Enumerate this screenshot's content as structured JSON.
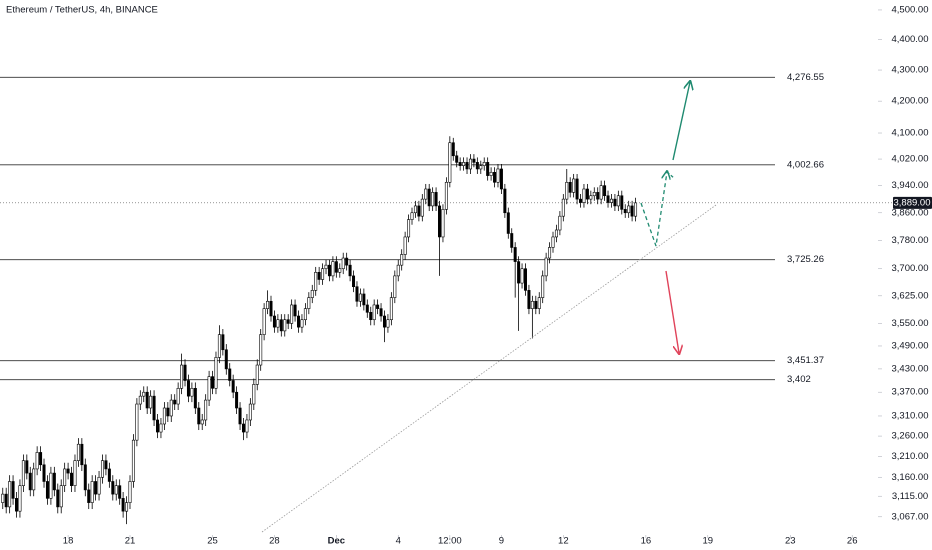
{
  "chart_data": {
    "type": "candlestick",
    "title": "Ethereum / TetherUS, 4h, BINANCE",
    "log_scale": true,
    "up_color": "#ffffff",
    "down_color": "#000000",
    "border_color": "#000000",
    "ylim": [
      3025,
      4534
    ],
    "yticks": [
      {
        "value": 4500,
        "label": "4,500.00"
      },
      {
        "value": 4400,
        "label": "4,400.00"
      },
      {
        "value": 4300,
        "label": "4,300.00"
      },
      {
        "value": 4200,
        "label": "4,200.00"
      },
      {
        "value": 4100,
        "label": "4,100.00"
      },
      {
        "value": 4020,
        "label": "4,020.00"
      },
      {
        "value": 3940,
        "label": "3,940.00"
      },
      {
        "value": 3860,
        "label": "3,860.00"
      },
      {
        "value": 3780,
        "label": "3,780.00"
      },
      {
        "value": 3700,
        "label": "3,700.00"
      },
      {
        "value": 3625,
        "label": "3,625.00"
      },
      {
        "value": 3550,
        "label": "3,550.00"
      },
      {
        "value": 3490,
        "label": "3,490.00"
      },
      {
        "value": 3430,
        "label": "3,430.00"
      },
      {
        "value": 3370,
        "label": "3,370.00"
      },
      {
        "value": 3310,
        "label": "3,310.00"
      },
      {
        "value": 3260,
        "label": "3,260.00"
      },
      {
        "value": 3210,
        "label": "3,210.00"
      },
      {
        "value": 3160,
        "label": "3,160.00"
      },
      {
        "value": 3115,
        "label": "3,115.00"
      },
      {
        "value": 3067,
        "label": "3,067.00"
      }
    ],
    "xlim": [
      0.2,
      255.5
    ],
    "xticks": [
      {
        "value": 20,
        "label": "18"
      },
      {
        "value": 38,
        "label": "21"
      },
      {
        "value": 62,
        "label": "25"
      },
      {
        "value": 80,
        "label": "28"
      },
      {
        "value": 98,
        "label": "Dec"
      },
      {
        "value": 116,
        "label": "4"
      },
      {
        "value": 131,
        "label": "12:00"
      },
      {
        "value": 146,
        "label": "9"
      },
      {
        "value": 164,
        "label": "12"
      },
      {
        "value": 188,
        "label": "16"
      },
      {
        "value": 206,
        "label": "19"
      },
      {
        "value": 230,
        "label": "23"
      },
      {
        "value": 248,
        "label": "26"
      }
    ],
    "levels": [
      {
        "value": 4276.55,
        "label": "4,276.55"
      },
      {
        "value": 4002.66,
        "label": "4,002.66"
      },
      {
        "value": 3725.26,
        "label": "3,725.26"
      },
      {
        "value": 3451.37,
        "label": "3,451.37"
      },
      {
        "value": 3402,
        "label": "3,402"
      }
    ],
    "last_price": {
      "value": 3889,
      "label": "3,889.00"
    },
    "x": [
      1,
      2,
      3,
      4,
      5,
      6,
      7,
      8,
      9,
      10,
      11,
      12,
      13,
      14,
      15,
      16,
      17,
      18,
      19,
      20,
      21,
      22,
      23,
      24,
      25,
      26,
      27,
      28,
      29,
      30,
      31,
      32,
      33,
      34,
      35,
      36,
      37,
      38,
      39,
      40,
      41,
      42,
      43,
      44,
      45,
      46,
      47,
      48,
      49,
      50,
      51,
      52,
      53,
      54,
      55,
      56,
      57,
      58,
      59,
      60,
      61,
      62,
      63,
      64,
      65,
      66,
      67,
      68,
      69,
      70,
      71,
      72,
      73,
      74,
      75,
      76,
      77,
      78,
      79,
      80,
      81,
      82,
      83,
      84,
      85,
      86,
      87,
      88,
      89,
      90,
      91,
      92,
      93,
      94,
      95,
      96,
      97,
      98,
      99,
      100,
      101,
      102,
      103,
      104,
      105,
      106,
      107,
      108,
      109,
      110,
      111,
      112,
      113,
      114,
      115,
      116,
      117,
      118,
      119,
      120,
      121,
      122,
      123,
      124,
      125,
      126,
      127,
      128,
      129,
      130,
      131,
      132,
      133,
      134,
      135,
      136,
      137,
      138,
      139,
      140,
      141,
      142,
      143,
      144,
      145,
      146,
      147,
      148,
      149,
      150,
      151,
      152,
      153,
      154,
      155,
      156,
      157,
      158,
      159,
      160,
      161,
      162,
      163,
      164,
      165,
      166,
      167,
      168,
      169,
      170,
      171,
      172,
      173,
      174,
      175,
      176,
      177,
      178,
      179,
      180,
      181,
      182,
      183,
      184,
      185
    ],
    "open": [
      3100,
      3120,
      3090,
      3150,
      3110,
      3080,
      3140,
      3200,
      3170,
      3130,
      3180,
      3220,
      3190,
      3150,
      3110,
      3170,
      3130,
      3090,
      3140,
      3180,
      3170,
      3140,
      3200,
      3240,
      3190,
      3130,
      3100,
      3150,
      3120,
      3160,
      3200,
      3180,
      3150,
      3120,
      3140,
      3110,
      3080,
      3100,
      3150,
      3250,
      3340,
      3360,
      3370,
      3330,
      3360,
      3300,
      3270,
      3290,
      3330,
      3310,
      3350,
      3340,
      3380,
      3440,
      3400,
      3360,
      3380,
      3330,
      3290,
      3300,
      3350,
      3410,
      3380,
      3460,
      3520,
      3480,
      3430,
      3400,
      3370,
      3330,
      3290,
      3270,
      3300,
      3340,
      3390,
      3440,
      3520,
      3590,
      3610,
      3570,
      3540,
      3560,
      3530,
      3560,
      3550,
      3600,
      3570,
      3540,
      3560,
      3590,
      3620,
      3640,
      3690,
      3670,
      3700,
      3710,
      3680,
      3720,
      3690,
      3700,
      3730,
      3710,
      3680,
      3650,
      3610,
      3630,
      3600,
      3580,
      3560,
      3600,
      3590,
      3570,
      3540,
      3560,
      3620,
      3680,
      3710,
      3740,
      3790,
      3840,
      3860,
      3880,
      3850,
      3900,
      3930,
      3880,
      3920,
      3880,
      3790,
      3870,
      3950,
      4070,
      4030,
      4010,
      4000,
      4010,
      3990,
      4020,
      4010,
      3990,
      4000,
      4010,
      3970,
      3980,
      3950,
      3990,
      3930,
      3860,
      3800,
      3760,
      3720,
      3660,
      3700,
      3640,
      3590,
      3610,
      3590,
      3620,
      3680,
      3730,
      3760,
      3790,
      3810,
      3850,
      3900,
      3950,
      3920,
      3960,
      3900,
      3890,
      3930,
      3900,
      3910,
      3920,
      3900,
      3940,
      3910,
      3890,
      3900,
      3880,
      3910,
      3870,
      3860,
      3880,
      3850
    ],
    "high": [
      3135,
      3135,
      3165,
      3165,
      3125,
      3155,
      3215,
      3215,
      3185,
      3195,
      3235,
      3235,
      3205,
      3165,
      3185,
      3185,
      3145,
      3155,
      3195,
      3195,
      3185,
      3215,
      3255,
      3255,
      3205,
      3145,
      3165,
      3165,
      3175,
      3215,
      3215,
      3195,
      3165,
      3155,
      3155,
      3125,
      3115,
      3165,
      3265,
      3355,
      3375,
      3385,
      3385,
      3375,
      3375,
      3315,
      3305,
      3345,
      3345,
      3365,
      3365,
      3395,
      3470,
      3455,
      3415,
      3395,
      3395,
      3345,
      3315,
      3365,
      3425,
      3425,
      3475,
      3545,
      3535,
      3495,
      3445,
      3415,
      3385,
      3345,
      3305,
      3315,
      3355,
      3405,
      3455,
      3535,
      3605,
      3640,
      3625,
      3585,
      3575,
      3575,
      3575,
      3575,
      3615,
      3615,
      3585,
      3575,
      3605,
      3635,
      3655,
      3705,
      3705,
      3715,
      3725,
      3725,
      3735,
      3735,
      3715,
      3745,
      3745,
      3725,
      3695,
      3665,
      3645,
      3645,
      3615,
      3595,
      3615,
      3615,
      3605,
      3585,
      3575,
      3635,
      3695,
      3725,
      3755,
      3805,
      3855,
      3875,
      3895,
      3895,
      3915,
      3945,
      3945,
      3935,
      3935,
      3895,
      3885,
      3965,
      4090,
      4085,
      4045,
      4025,
      4025,
      4025,
      4035,
      4035,
      4025,
      4015,
      4025,
      4025,
      3995,
      3995,
      4005,
      4005,
      3945,
      3875,
      3815,
      3775,
      3735,
      3715,
      3715,
      3655,
      3625,
      3625,
      3635,
      3695,
      3745,
      3775,
      3805,
      3825,
      3865,
      3915,
      3990,
      3965,
      3975,
      3975,
      3915,
      3945,
      3945,
      3925,
      3935,
      3935,
      3955,
      3955,
      3925,
      3915,
      3915,
      3925,
      3925,
      3885,
      3895,
      3895,
      3904
    ],
    "low": [
      3085,
      3075,
      3075,
      3095,
      3065,
      3065,
      3125,
      3155,
      3115,
      3115,
      3165,
      3175,
      3135,
      3095,
      3095,
      3115,
      3075,
      3075,
      3125,
      3155,
      3125,
      3125,
      3185,
      3175,
      3115,
      3085,
      3085,
      3105,
      3105,
      3145,
      3165,
      3135,
      3105,
      3105,
      3095,
      3065,
      3050,
      3085,
      3135,
      3235,
      3325,
      3345,
      3315,
      3315,
      3285,
      3255,
      3255,
      3275,
      3295,
      3295,
      3325,
      3325,
      3365,
      3385,
      3345,
      3345,
      3315,
      3275,
      3275,
      3285,
      3335,
      3365,
      3365,
      3445,
      3465,
      3415,
      3385,
      3355,
      3315,
      3275,
      3250,
      3255,
      3285,
      3325,
      3375,
      3425,
      3505,
      3575,
      3555,
      3525,
      3525,
      3515,
      3515,
      3535,
      3535,
      3555,
      3525,
      3525,
      3545,
      3575,
      3605,
      3625,
      3655,
      3655,
      3685,
      3665,
      3665,
      3675,
      3675,
      3685,
      3695,
      3665,
      3635,
      3595,
      3595,
      3585,
      3565,
      3545,
      3545,
      3575,
      3555,
      3500,
      3525,
      3545,
      3605,
      3665,
      3695,
      3725,
      3775,
      3825,
      3845,
      3835,
      3835,
      3885,
      3865,
      3865,
      3865,
      3680,
      3775,
      3855,
      3935,
      4015,
      3995,
      3985,
      3985,
      3975,
      3975,
      3995,
      3975,
      3975,
      3985,
      3955,
      3955,
      3935,
      3935,
      3915,
      3845,
      3785,
      3745,
      3620,
      3530,
      3645,
      3625,
      3575,
      3510,
      3575,
      3575,
      3605,
      3665,
      3715,
      3745,
      3775,
      3795,
      3835,
      3885,
      3905,
      3905,
      3885,
      3875,
      3875,
      3885,
      3885,
      3895,
      3885,
      3885,
      3895,
      3875,
      3875,
      3865,
      3865,
      3855,
      3845,
      3845,
      3835,
      3835
    ],
    "close": [
      3120,
      3090,
      3150,
      3110,
      3080,
      3140,
      3200,
      3170,
      3130,
      3180,
      3220,
      3190,
      3150,
      3110,
      3170,
      3130,
      3090,
      3140,
      3180,
      3170,
      3140,
      3200,
      3240,
      3190,
      3130,
      3100,
      3150,
      3120,
      3160,
      3200,
      3180,
      3150,
      3120,
      3140,
      3110,
      3080,
      3100,
      3150,
      3250,
      3340,
      3360,
      3370,
      3330,
      3360,
      3300,
      3270,
      3290,
      3330,
      3310,
      3350,
      3340,
      3380,
      3440,
      3400,
      3360,
      3380,
      3330,
      3290,
      3300,
      3350,
      3410,
      3380,
      3460,
      3520,
      3480,
      3430,
      3400,
      3370,
      3330,
      3290,
      3270,
      3300,
      3340,
      3390,
      3440,
      3520,
      3590,
      3610,
      3570,
      3540,
      3560,
      3530,
      3560,
      3550,
      3600,
      3570,
      3540,
      3560,
      3590,
      3620,
      3640,
      3690,
      3670,
      3700,
      3710,
      3680,
      3720,
      3690,
      3700,
      3730,
      3710,
      3680,
      3650,
      3610,
      3630,
      3600,
      3580,
      3560,
      3600,
      3590,
      3570,
      3540,
      3560,
      3620,
      3680,
      3710,
      3740,
      3790,
      3840,
      3860,
      3880,
      3850,
      3900,
      3930,
      3880,
      3920,
      3880,
      3790,
      3870,
      3950,
      4070,
      4030,
      4010,
      4000,
      4010,
      3990,
      4020,
      4010,
      3990,
      4000,
      4010,
      3970,
      3980,
      3950,
      3990,
      3930,
      3860,
      3800,
      3760,
      3720,
      3660,
      3700,
      3640,
      3590,
      3610,
      3590,
      3620,
      3680,
      3730,
      3760,
      3790,
      3810,
      3850,
      3900,
      3950,
      3920,
      3960,
      3900,
      3890,
      3930,
      3900,
      3910,
      3920,
      3900,
      3940,
      3910,
      3890,
      3900,
      3880,
      3910,
      3870,
      3860,
      3880,
      3850,
      3889
    ]
  }
}
